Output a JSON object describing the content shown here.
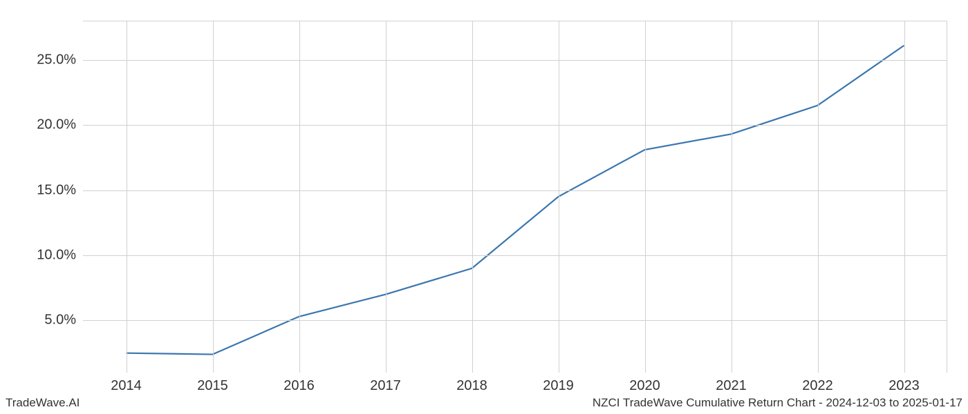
{
  "chart": {
    "type": "line",
    "x_categories": [
      "2014",
      "2015",
      "2016",
      "2017",
      "2018",
      "2019",
      "2020",
      "2021",
      "2022",
      "2023"
    ],
    "y_values": [
      2.5,
      2.4,
      5.3,
      7.0,
      9.0,
      14.5,
      18.1,
      19.3,
      21.5,
      26.1
    ],
    "y_ticks": [
      5.0,
      10.0,
      15.0,
      20.0,
      25.0
    ],
    "y_tick_labels": [
      "5.0%",
      "10.0%",
      "15.0%",
      "20.0%",
      "25.0%"
    ],
    "ylim": [
      1.0,
      28.0
    ],
    "xlim_index": [
      -0.5,
      9.5
    ],
    "line_color": "#3a76af",
    "line_width": 2.2,
    "grid_color": "#d0d0d0",
    "background_color": "#ffffff",
    "tick_fontsize": 20,
    "footer_fontsize": 17
  },
  "footer": {
    "left": "TradeWave.AI",
    "right": "NZCI TradeWave Cumulative Return Chart - 2024-12-03 to 2025-01-17"
  }
}
